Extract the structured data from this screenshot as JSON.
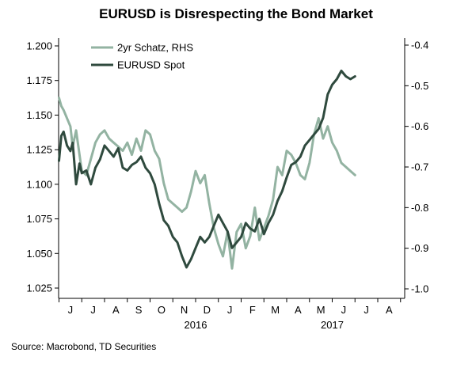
{
  "chart_data": {
    "type": "line",
    "title": "EURUSD is Disrespecting the Bond Market",
    "source": "Source: Macrobond, TD Securities",
    "x_tick_labels": [
      "J",
      "J",
      "A",
      "S",
      "O",
      "N",
      "D",
      "J",
      "F",
      "M",
      "A",
      "M",
      "J",
      "J",
      "A"
    ],
    "year_labels": [
      {
        "label": "2016",
        "month_index": 5.5
      },
      {
        "label": "2017",
        "month_index": 11.5
      }
    ],
    "left_axis": {
      "ylim": [
        1.025,
        1.2
      ],
      "ticks": [
        "1.025",
        "1.050",
        "1.075",
        "1.100",
        "1.125",
        "1.150",
        "1.175",
        "1.200"
      ]
    },
    "right_axis": {
      "ylim": [
        -1.0,
        -0.4
      ],
      "ticks": [
        "-1.0",
        "-0.9",
        "-0.8",
        "-0.7",
        "-0.6",
        "-0.5",
        "-0.4"
      ]
    },
    "legend_position": "top-left",
    "grid": false,
    "series": [
      {
        "name": "2yr Schatz, RHS",
        "axis": "right",
        "color": "#93b3a2",
        "x": [
          0,
          0.1,
          0.2,
          0.35,
          0.5,
          0.6,
          0.75,
          0.9,
          1.0,
          1.2,
          1.4,
          1.6,
          1.8,
          2.0,
          2.2,
          2.4,
          2.6,
          2.8,
          3.0,
          3.2,
          3.4,
          3.6,
          3.8,
          4.0,
          4.2,
          4.4,
          4.6,
          4.8,
          5.0,
          5.2,
          5.4,
          5.6,
          5.8,
          6.0,
          6.2,
          6.4,
          6.6,
          6.8,
          7.0,
          7.2,
          7.4,
          7.6,
          7.8,
          8.0,
          8.2,
          8.4,
          8.6,
          8.8,
          9.0,
          9.2,
          9.4,
          9.6,
          9.8,
          10.0,
          10.2,
          10.4,
          10.6,
          10.8,
          11.0,
          11.2,
          11.4,
          11.6,
          11.8,
          12.0,
          12.2,
          12.4,
          12.6,
          12.8,
          13.0
        ],
        "values": [
          -0.53,
          -0.55,
          -0.56,
          -0.58,
          -0.6,
          -0.65,
          -0.61,
          -0.67,
          -0.71,
          -0.72,
          -0.68,
          -0.64,
          -0.62,
          -0.61,
          -0.63,
          -0.64,
          -0.65,
          -0.66,
          -0.64,
          -0.67,
          -0.63,
          -0.66,
          -0.61,
          -0.62,
          -0.66,
          -0.68,
          -0.74,
          -0.78,
          -0.79,
          -0.8,
          -0.81,
          -0.8,
          -0.76,
          -0.71,
          -0.74,
          -0.72,
          -0.79,
          -0.85,
          -0.89,
          -0.92,
          -0.86,
          -0.95,
          -0.86,
          -0.84,
          -0.9,
          -0.87,
          -0.8,
          -0.88,
          -0.85,
          -0.82,
          -0.78,
          -0.7,
          -0.72,
          -0.66,
          -0.67,
          -0.69,
          -0.72,
          -0.73,
          -0.69,
          -0.62,
          -0.58,
          -0.63,
          -0.6,
          -0.64,
          -0.66,
          -0.69,
          -0.7,
          -0.71,
          -0.72
        ]
      },
      {
        "name": "EURUSD Spot",
        "axis": "left",
        "color": "#2f4a3e",
        "x": [
          0,
          0.1,
          0.2,
          0.35,
          0.5,
          0.6,
          0.75,
          0.9,
          1.0,
          1.2,
          1.4,
          1.6,
          1.8,
          2.0,
          2.2,
          2.4,
          2.6,
          2.8,
          3.0,
          3.2,
          3.4,
          3.6,
          3.8,
          4.0,
          4.2,
          4.4,
          4.6,
          4.8,
          5.0,
          5.2,
          5.4,
          5.6,
          5.8,
          6.0,
          6.2,
          6.4,
          6.6,
          6.8,
          7.0,
          7.2,
          7.4,
          7.6,
          7.8,
          8.0,
          8.2,
          8.4,
          8.6,
          8.8,
          9.0,
          9.2,
          9.4,
          9.6,
          9.8,
          10.0,
          10.2,
          10.4,
          10.6,
          10.8,
          11.0,
          11.2,
          11.4,
          11.6,
          11.8,
          12.0,
          12.2,
          12.4,
          12.6,
          12.8,
          13.0
        ],
        "values": [
          1.117,
          1.135,
          1.138,
          1.128,
          1.124,
          1.13,
          1.1,
          1.115,
          1.108,
          1.11,
          1.1,
          1.112,
          1.118,
          1.128,
          1.124,
          1.12,
          1.126,
          1.112,
          1.11,
          1.114,
          1.116,
          1.12,
          1.112,
          1.108,
          1.1,
          1.086,
          1.074,
          1.07,
          1.062,
          1.058,
          1.048,
          1.04,
          1.046,
          1.054,
          1.062,
          1.058,
          1.062,
          1.07,
          1.078,
          1.072,
          1.066,
          1.054,
          1.058,
          1.062,
          1.072,
          1.068,
          1.066,
          1.075,
          1.064,
          1.072,
          1.078,
          1.088,
          1.095,
          1.105,
          1.114,
          1.116,
          1.12,
          1.128,
          1.132,
          1.136,
          1.14,
          1.148,
          1.165,
          1.172,
          1.176,
          1.182,
          1.178,
          1.176,
          1.178
        ]
      }
    ]
  }
}
